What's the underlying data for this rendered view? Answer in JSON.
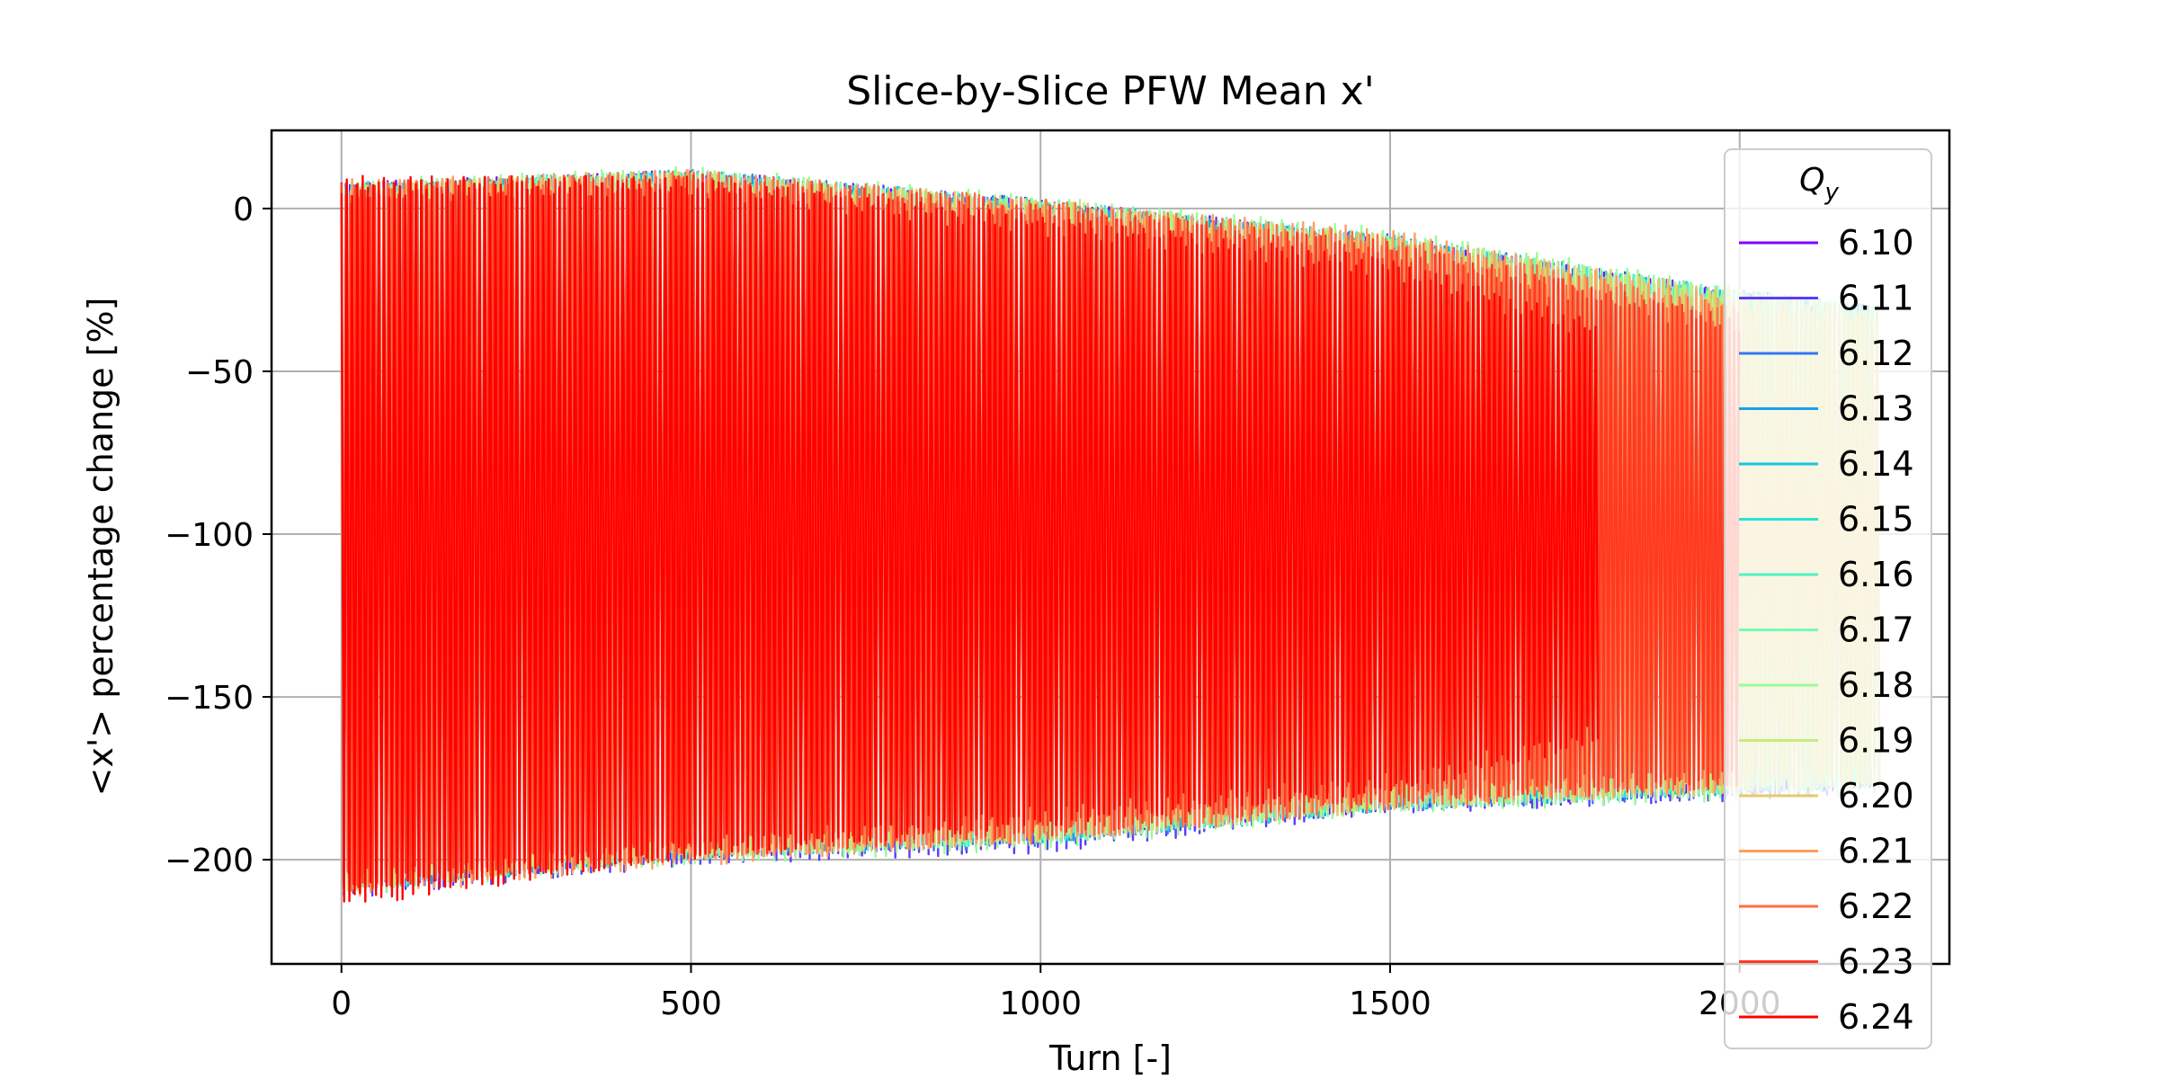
{
  "chart_data": {
    "type": "line",
    "title": "Slice-by-Slice PFW Mean x'",
    "xlabel": "Turn [-]",
    "ylabel": "<x'> percentage change [%]",
    "xlim": [
      -100,
      2300
    ],
    "ylim": [
      -232,
      24
    ],
    "xticks": [
      0,
      500,
      1000,
      1500,
      2000
    ],
    "xtick_labels": [
      "0",
      "500",
      "1000",
      "1500",
      "2000"
    ],
    "yticks": [
      0,
      -50,
      -100,
      -150,
      -200
    ],
    "ytick_labels": [
      "0",
      "−50",
      "−100",
      "−150",
      "−200"
    ],
    "grid": true,
    "legend": {
      "title": "Q",
      "title_subscript": "y",
      "placement": "right"
    },
    "series": [
      {
        "name": "6.10",
        "color": "#8000ff",
        "x_end": 2200,
        "upper_envelope": [
          [
            0,
            8
          ],
          [
            500,
            12
          ],
          [
            1000,
            3
          ],
          [
            1500,
            -8
          ],
          [
            2000,
            -25
          ],
          [
            2200,
            -30
          ]
        ],
        "lower_envelope": [
          [
            0,
            -210
          ],
          [
            500,
            -200
          ],
          [
            1000,
            -195
          ],
          [
            1500,
            -185
          ],
          [
            2000,
            -180
          ],
          [
            2200,
            -178
          ]
        ]
      },
      {
        "name": "6.11",
        "color": "#5b3cfb",
        "x_end": 2200,
        "upper_envelope": [
          [
            0,
            8
          ],
          [
            500,
            12
          ],
          [
            1000,
            3
          ],
          [
            1500,
            -8
          ],
          [
            2000,
            -25
          ],
          [
            2200,
            -30
          ]
        ],
        "lower_envelope": [
          [
            0,
            -212
          ],
          [
            500,
            -202
          ],
          [
            1000,
            -198
          ],
          [
            1500,
            -186
          ],
          [
            2000,
            -182
          ],
          [
            2200,
            -180
          ]
        ]
      },
      {
        "name": "6.12",
        "color": "#3677f2",
        "x_end": 2200,
        "upper_envelope": [
          [
            0,
            8
          ],
          [
            500,
            12
          ],
          [
            1000,
            3
          ],
          [
            1500,
            -8
          ],
          [
            2000,
            -25
          ],
          [
            2200,
            -30
          ]
        ],
        "lower_envelope": [
          [
            0,
            -210
          ],
          [
            500,
            -200
          ],
          [
            1000,
            -196
          ],
          [
            1500,
            -185
          ],
          [
            2000,
            -181
          ],
          [
            2200,
            -178
          ]
        ]
      },
      {
        "name": "6.13",
        "color": "#1b9ee9",
        "x_end": 2200,
        "upper_envelope": [
          [
            0,
            8
          ],
          [
            500,
            12
          ],
          [
            1000,
            3
          ],
          [
            1500,
            -8
          ],
          [
            2000,
            -25
          ],
          [
            2200,
            -30
          ]
        ],
        "lower_envelope": [
          [
            0,
            -210
          ],
          [
            500,
            -200
          ],
          [
            1000,
            -195
          ],
          [
            1500,
            -185
          ],
          [
            2000,
            -180
          ],
          [
            2200,
            -178
          ]
        ]
      },
      {
        "name": "6.14",
        "color": "#17c5e0",
        "x_end": 2200,
        "upper_envelope": [
          [
            0,
            8
          ],
          [
            500,
            12
          ],
          [
            1000,
            3
          ],
          [
            1500,
            -8
          ],
          [
            2000,
            -25
          ],
          [
            2200,
            -30
          ]
        ],
        "lower_envelope": [
          [
            0,
            -210
          ],
          [
            500,
            -200
          ],
          [
            1000,
            -195
          ],
          [
            1500,
            -185
          ],
          [
            2000,
            -180
          ],
          [
            2200,
            -178
          ]
        ]
      },
      {
        "name": "6.15",
        "color": "#2ee0d4",
        "x_end": 2200,
        "upper_envelope": [
          [
            0,
            8
          ],
          [
            500,
            12
          ],
          [
            1000,
            3
          ],
          [
            1500,
            -8
          ],
          [
            2000,
            -25
          ],
          [
            2200,
            -30
          ]
        ],
        "lower_envelope": [
          [
            0,
            -210
          ],
          [
            500,
            -200
          ],
          [
            1000,
            -195
          ],
          [
            1500,
            -185
          ],
          [
            2000,
            -180
          ],
          [
            2200,
            -178
          ]
        ]
      },
      {
        "name": "6.16",
        "color": "#52f0c4",
        "x_end": 2200,
        "upper_envelope": [
          [
            0,
            8
          ],
          [
            500,
            12
          ],
          [
            1000,
            3
          ],
          [
            1500,
            -8
          ],
          [
            2000,
            -25
          ],
          [
            2200,
            -30
          ]
        ],
        "lower_envelope": [
          [
            0,
            -210
          ],
          [
            500,
            -200
          ],
          [
            1000,
            -195
          ],
          [
            1500,
            -185
          ],
          [
            2000,
            -180
          ],
          [
            2200,
            -178
          ]
        ]
      },
      {
        "name": "6.17",
        "color": "#78fdb0",
        "x_end": 2200,
        "upper_envelope": [
          [
            0,
            8
          ],
          [
            500,
            12
          ],
          [
            1000,
            3
          ],
          [
            1500,
            -8
          ],
          [
            2000,
            -25
          ],
          [
            2200,
            -30
          ]
        ],
        "lower_envelope": [
          [
            0,
            -210
          ],
          [
            500,
            -200
          ],
          [
            1000,
            -195
          ],
          [
            1500,
            -185
          ],
          [
            2000,
            -180
          ],
          [
            2200,
            -178
          ]
        ]
      },
      {
        "name": "6.18",
        "color": "#9afb9a",
        "x_end": 2200,
        "upper_envelope": [
          [
            0,
            9
          ],
          [
            500,
            13
          ],
          [
            1000,
            4
          ],
          [
            1500,
            -6
          ],
          [
            2000,
            -24
          ],
          [
            2200,
            -30
          ]
        ],
        "lower_envelope": [
          [
            0,
            -211
          ],
          [
            500,
            -202
          ],
          [
            1000,
            -197
          ],
          [
            1500,
            -186
          ],
          [
            2000,
            -182
          ],
          [
            2200,
            -180
          ]
        ]
      },
      {
        "name": "6.19",
        "color": "#c6ec7d",
        "x_end": 2200,
        "upper_envelope": [
          [
            0,
            8
          ],
          [
            500,
            12
          ],
          [
            1000,
            3
          ],
          [
            1500,
            -8
          ],
          [
            2000,
            -25
          ],
          [
            2200,
            -30
          ]
        ],
        "lower_envelope": [
          [
            0,
            -210
          ],
          [
            500,
            -200
          ],
          [
            1000,
            -195
          ],
          [
            1500,
            -185
          ],
          [
            2000,
            -180
          ],
          [
            2200,
            -178
          ]
        ]
      },
      {
        "name": "6.20",
        "color": "#e4c96a",
        "x_end": 2200,
        "upper_envelope": [
          [
            0,
            8
          ],
          [
            500,
            12
          ],
          [
            1000,
            3
          ],
          [
            1500,
            -8
          ],
          [
            2000,
            -25
          ],
          [
            2200,
            -30
          ]
        ],
        "lower_envelope": [
          [
            0,
            -210
          ],
          [
            500,
            -200
          ],
          [
            1000,
            -195
          ],
          [
            1500,
            -185
          ],
          [
            2000,
            -180
          ],
          [
            2200,
            -178
          ]
        ]
      },
      {
        "name": "6.21",
        "color": "#ff9e5e",
        "x_end": 2000,
        "upper_envelope": [
          [
            0,
            9
          ],
          [
            500,
            12
          ],
          [
            1000,
            2
          ],
          [
            1500,
            -6
          ],
          [
            2000,
            -28
          ]
        ],
        "lower_envelope": [
          [
            0,
            -212
          ],
          [
            500,
            -202
          ],
          [
            1000,
            -195
          ],
          [
            1500,
            -183
          ],
          [
            2000,
            -180
          ]
        ]
      },
      {
        "name": "6.22",
        "color": "#ff6e45",
        "x_end": 2000,
        "upper_envelope": [
          [
            0,
            8
          ],
          [
            500,
            12
          ],
          [
            1000,
            3
          ],
          [
            1500,
            -8
          ],
          [
            2000,
            -30
          ]
        ],
        "lower_envelope": [
          [
            0,
            -210
          ],
          [
            500,
            -200
          ],
          [
            1000,
            -195
          ],
          [
            1500,
            -185
          ],
          [
            2000,
            -178
          ]
        ]
      },
      {
        "name": "6.23",
        "color": "#ff3a20",
        "x_end": 2000,
        "upper_envelope": [
          [
            0,
            8
          ],
          [
            500,
            11
          ],
          [
            1000,
            2
          ],
          [
            1500,
            -10
          ],
          [
            2000,
            -33
          ]
        ],
        "lower_envelope": [
          [
            0,
            -210
          ],
          [
            500,
            -200
          ],
          [
            1000,
            -193
          ],
          [
            1500,
            -183
          ],
          [
            2000,
            -178
          ]
        ]
      },
      {
        "name": "6.24",
        "color": "#ff0000",
        "x_end": 1800,
        "upper_envelope": [
          [
            0,
            10
          ],
          [
            500,
            10
          ],
          [
            1000,
            -2
          ],
          [
            1500,
            -15
          ],
          [
            1800,
            -35
          ]
        ],
        "lower_envelope": [
          [
            0,
            -215
          ],
          [
            500,
            -200
          ],
          [
            1000,
            -190
          ],
          [
            1500,
            -180
          ],
          [
            1800,
            -165
          ]
        ]
      }
    ]
  }
}
